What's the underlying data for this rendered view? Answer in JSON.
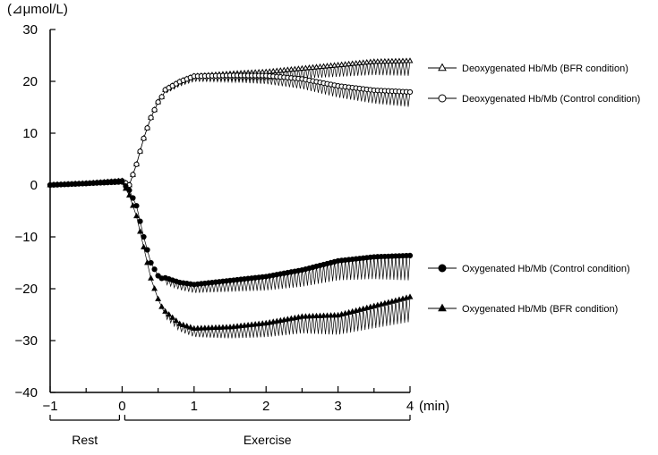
{
  "chart_data": {
    "type": "line",
    "ylabel": "(⊿μmol/L)",
    "x_unit": "(min)",
    "x_ticks": [
      "−1",
      "0",
      "1",
      "2",
      "3",
      "4"
    ],
    "x_tick_values": [
      -1,
      0,
      1,
      2,
      3,
      4
    ],
    "y_ticks": [
      "30",
      "20",
      "10",
      "0",
      "−10",
      "−20",
      "−30",
      "−40"
    ],
    "y_tick_values": [
      30,
      20,
      10,
      0,
      -10,
      -20,
      -30,
      -40
    ],
    "xlim": [
      -1,
      4
    ],
    "ylim": [
      -40,
      30
    ],
    "grid": false,
    "phases": [
      {
        "label": "Rest",
        "start": -1,
        "end": 0
      },
      {
        "label": "Exercise",
        "start": 0,
        "end": 4
      }
    ],
    "series": [
      {
        "name": "Deoxygenated Hb/Mb (BFR condition)",
        "marker": "open-triangle",
        "x": [
          -1,
          -0.5,
          0,
          0.1,
          0.2,
          0.3,
          0.4,
          0.5,
          0.6,
          0.8,
          1,
          1.5,
          2,
          2.5,
          3,
          3.5,
          4
        ],
        "y": [
          0,
          0.3,
          0.8,
          0,
          4,
          9,
          13,
          16,
          18,
          19.5,
          20.5,
          20.8,
          21,
          21.5,
          22,
          22.5,
          22.5
        ]
      },
      {
        "name": "Deoxygenated Hb/Mb (Control condition)",
        "marker": "open-circle",
        "x": [
          -1,
          -0.5,
          0,
          0.1,
          0.2,
          0.3,
          0.4,
          0.5,
          0.6,
          0.8,
          1,
          1.5,
          2,
          2.5,
          3,
          3.5,
          4
        ],
        "y": [
          0,
          0.3,
          0.8,
          0,
          4,
          9,
          13,
          16,
          18,
          19.5,
          20.5,
          20.5,
          20.3,
          19.5,
          18,
          17,
          16.5
        ]
      },
      {
        "name": "Oxygenated Hb/Mb (Control condition)",
        "marker": "filled-circle",
        "x": [
          -1,
          -0.5,
          0,
          0.1,
          0.2,
          0.3,
          0.4,
          0.5,
          0.6,
          0.8,
          1,
          1.5,
          2,
          2.5,
          3,
          3.5,
          4
        ],
        "y": [
          0,
          0.3,
          0.6,
          -1,
          -4,
          -10,
          -15,
          -17.5,
          -18.5,
          -19.5,
          -20,
          -19.5,
          -19,
          -18,
          -16.5,
          -16,
          -16
        ]
      },
      {
        "name": "Oxygenated Hb/Mb (BFR condition)",
        "marker": "filled-triangle",
        "x": [
          -1,
          -0.5,
          0,
          0.1,
          0.2,
          0.3,
          0.4,
          0.5,
          0.6,
          0.8,
          1,
          1.5,
          2,
          2.5,
          3,
          3.5,
          4
        ],
        "y": [
          0,
          0.3,
          0.6,
          -2,
          -6,
          -12,
          -18,
          -22,
          -25,
          -27.5,
          -28.5,
          -28.5,
          -28,
          -27,
          -27,
          -25.5,
          -24
        ]
      }
    ]
  }
}
